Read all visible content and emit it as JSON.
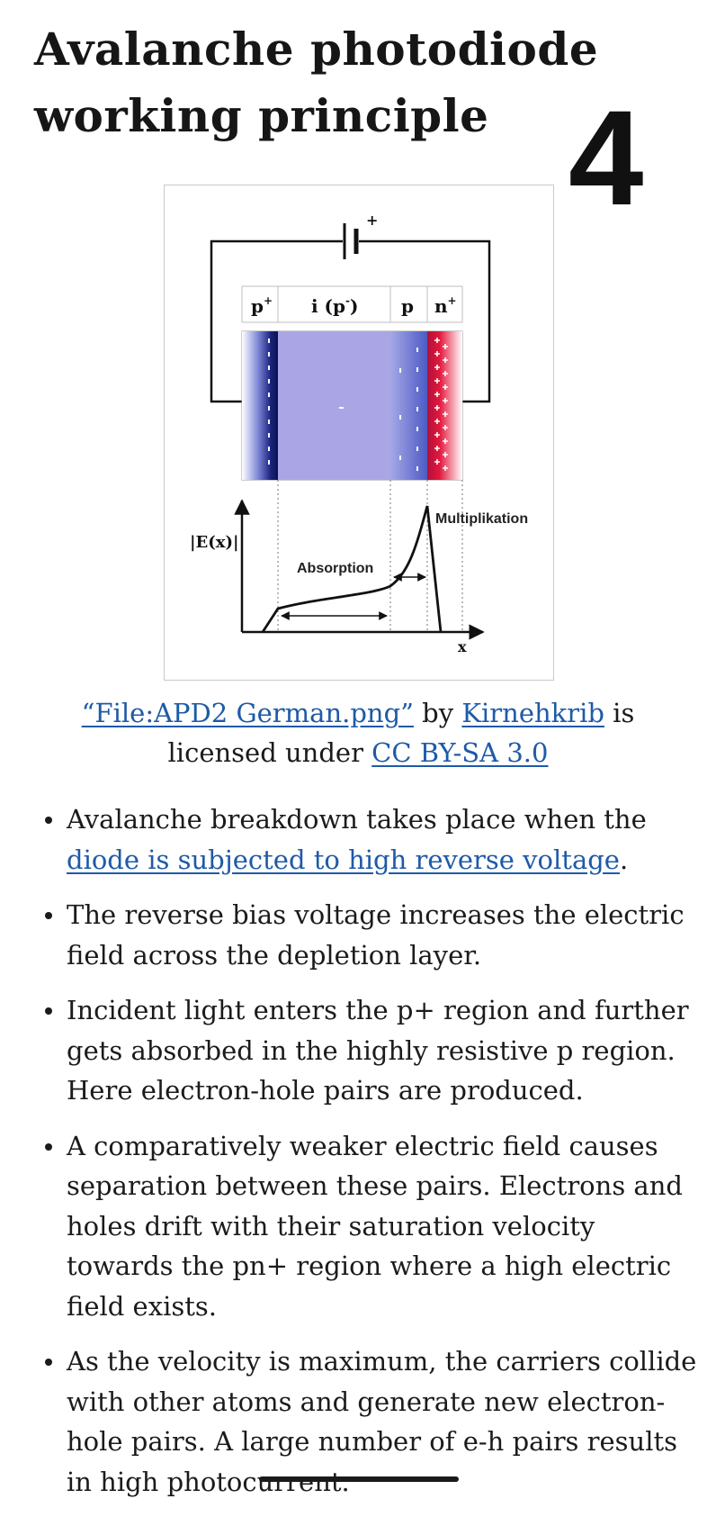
{
  "title": "Avalanche photodiode working principle",
  "page_number": "4",
  "figure": {
    "plus_sign": "+",
    "region_labels": {
      "p_plus": "p",
      "p_plus_sup": "+",
      "intrinsic": "i (p",
      "intrinsic_sup": "-",
      "intrinsic_close": ")",
      "p": "p",
      "n_plus": "n",
      "n_plus_sup": "+"
    },
    "field_axis_label": "|E(x)|",
    "x_axis_label": "x",
    "absorption_label": "Absorption",
    "multiplication_label": "Multiplikation",
    "minus_sign": "-",
    "colors": {
      "p_plus_region": "#1a237e",
      "intrinsic_region": "#aaa6e6",
      "p_region": "#6f78d4",
      "n_plus_region": "#e3183c"
    }
  },
  "caption": {
    "file_link": "“File:APD2 German.png”",
    "by": " by ",
    "author_link": "Kirnehkrib",
    "licensed_under": " is licensed under ",
    "license_link": "CC BY-SA 3.0"
  },
  "bullets": [
    {
      "text_before": "Avalanche breakdown takes place when the ",
      "link": "diode is subjected to high reverse voltage",
      "text_after": "."
    },
    {
      "text_before": "The reverse bias voltage increases the electric field across the depletion layer."
    },
    {
      "text_before": "Incident light enters the p+ region and further gets absorbed in the highly resistive p region. Here electron-hole pairs are produced."
    },
    {
      "text_before": "A comparatively weaker electric field causes separation between these pairs. Electrons and holes drift with their saturation velocity towards the pn+ region where a high electric field exists."
    },
    {
      "text_before": "As the velocity is maximum, the carriers collide with other atoms and generate new electron-hole pairs. A large number of e-h pairs results in high photocurrent."
    }
  ]
}
